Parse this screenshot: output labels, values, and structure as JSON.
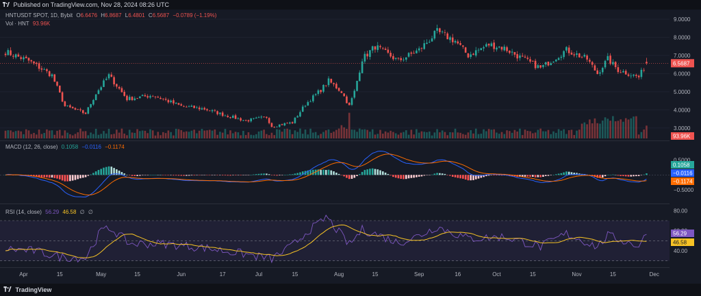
{
  "header": {
    "published": "Published on TradingView.com, Nov 28, 2024 08:26 UTC"
  },
  "legend": {
    "symbol": "HNTUSDT SPOT, 1D, Bybit",
    "o_label": "O",
    "o": "6.6476",
    "h_label": "H",
    "h": "6.8687",
    "l_label": "L",
    "l": "6.4801",
    "c_label": "C",
    "c": "6.5687",
    "change": "−0.0789 (−1.19%)",
    "vol_label": "Vol · HNT",
    "vol_value": "93.96K"
  },
  "macd_legend": {
    "name": "MACD (12, 26, close)",
    "v1": "0.1058",
    "v2": "−0.0116",
    "v3": "−0.1174"
  },
  "rsi_legend": {
    "name": "RSI (14, close)",
    "v1": "56.29",
    "v2": "46.58",
    "v3": "∅",
    "v4": "∅"
  },
  "footer": {
    "brand": "TradingView"
  },
  "colors": {
    "up": "#26a69a",
    "down": "#ef5350",
    "macd": "#2962ff",
    "signal": "#ff6d00",
    "rsi": "#7e57c2",
    "rsi_ma": "#f7c325"
  },
  "chart_data": [
    {
      "type": "candlestick",
      "title": "HNTUSDT SPOT, 1D, Bybit",
      "x_ticks": [
        "Apr",
        "15",
        "May",
        "15",
        "Jun",
        "17",
        "Jul",
        "15",
        "Aug",
        "15",
        "Sep",
        "16",
        "Oct",
        "15",
        "Nov",
        "15",
        "Dec"
      ],
      "y_ticks": [
        "3.0000",
        "4.0000",
        "5.0000",
        "6.0000",
        "7.0000",
        "8.0000",
        "9.0000"
      ],
      "ylim": [
        2.5,
        9.3
      ],
      "last_price": "6.5687",
      "volume_label": "93.96K",
      "close_anchors": [
        {
          "date": "2024-03-25",
          "close": 7.2
        },
        {
          "date": "2024-04-03",
          "close": 6.7
        },
        {
          "date": "2024-04-12",
          "close": 5.9
        },
        {
          "date": "2024-04-17",
          "close": 4.2
        },
        {
          "date": "2024-04-25",
          "close": 3.8
        },
        {
          "date": "2024-04-29",
          "close": 4.9
        },
        {
          "date": "2024-05-04",
          "close": 5.9
        },
        {
          "date": "2024-05-11",
          "close": 4.6
        },
        {
          "date": "2024-05-21",
          "close": 4.8
        },
        {
          "date": "2024-06-01",
          "close": 4.2
        },
        {
          "date": "2024-06-10",
          "close": 4.05
        },
        {
          "date": "2024-06-18",
          "close": 3.7
        },
        {
          "date": "2024-06-26",
          "close": 3.4
        },
        {
          "date": "2024-07-04",
          "close": 3.6
        },
        {
          "date": "2024-07-06",
          "close": 3.1
        },
        {
          "date": "2024-07-14",
          "close": 3.3
        },
        {
          "date": "2024-07-19",
          "close": 4.3
        },
        {
          "date": "2024-07-25",
          "close": 5.1
        },
        {
          "date": "2024-07-28",
          "close": 5.6
        },
        {
          "date": "2024-08-02",
          "close": 5.0
        },
        {
          "date": "2024-08-05",
          "close": 4.2
        },
        {
          "date": "2024-08-07",
          "close": 5.0
        },
        {
          "date": "2024-08-10",
          "close": 6.8
        },
        {
          "date": "2024-08-15",
          "close": 7.5
        },
        {
          "date": "2024-08-24",
          "close": 6.7
        },
        {
          "date": "2024-09-01",
          "close": 7.3
        },
        {
          "date": "2024-09-08",
          "close": 8.3
        },
        {
          "date": "2024-09-15",
          "close": 7.8
        },
        {
          "date": "2024-09-20",
          "close": 7.0
        },
        {
          "date": "2024-09-28",
          "close": 7.6
        },
        {
          "date": "2024-10-04",
          "close": 7.4
        },
        {
          "date": "2024-10-10",
          "close": 6.9
        },
        {
          "date": "2024-10-18",
          "close": 6.3
        },
        {
          "date": "2024-10-24",
          "close": 6.9
        },
        {
          "date": "2024-10-28",
          "close": 7.3
        },
        {
          "date": "2024-11-05",
          "close": 6.8
        },
        {
          "date": "2024-11-09",
          "close": 6.0
        },
        {
          "date": "2024-11-13",
          "close": 6.8
        },
        {
          "date": "2024-11-17",
          "close": 6.2
        },
        {
          "date": "2024-11-25",
          "close": 5.8
        },
        {
          "date": "2024-11-28",
          "close": 6.57
        }
      ]
    },
    {
      "type": "line",
      "title": "MACD (12, 26, close)",
      "y_ticks": [
        "0.5000",
        "−0.5000"
      ],
      "ylim": [
        -0.8,
        1.0
      ],
      "series_values": [
        "0.1058",
        "−0.0116",
        "−0.1174"
      ]
    },
    {
      "type": "line",
      "title": "RSI (14, close)",
      "y_ticks": [
        "80.00",
        "60.00",
        "40.00"
      ],
      "ylim": [
        25,
        85
      ],
      "bands": [
        70,
        50,
        30
      ],
      "series_values": [
        "56.29",
        "46.58"
      ],
      "rsi_anchors": [
        {
          "date": "2024-03-25",
          "rsi": 42
        },
        {
          "date": "2024-04-05",
          "rsi": 40
        },
        {
          "date": "2024-04-15",
          "rsi": 34
        },
        {
          "date": "2024-04-25",
          "rsi": 33
        },
        {
          "date": "2024-05-01",
          "rsi": 60
        },
        {
          "date": "2024-05-05",
          "rsi": 62
        },
        {
          "date": "2024-05-12",
          "rsi": 47
        },
        {
          "date": "2024-05-25",
          "rsi": 47
        },
        {
          "date": "2024-06-10",
          "rsi": 43
        },
        {
          "date": "2024-06-25",
          "rsi": 37
        },
        {
          "date": "2024-07-06",
          "rsi": 32
        },
        {
          "date": "2024-07-14",
          "rsi": 45
        },
        {
          "date": "2024-07-20",
          "rsi": 60
        },
        {
          "date": "2024-07-25",
          "rsi": 68
        },
        {
          "date": "2024-07-27",
          "rsi": 74
        },
        {
          "date": "2024-08-05",
          "rsi": 46
        },
        {
          "date": "2024-08-10",
          "rsi": 61
        },
        {
          "date": "2024-08-15",
          "rsi": 57
        },
        {
          "date": "2024-08-24",
          "rsi": 48
        },
        {
          "date": "2024-09-01",
          "rsi": 55
        },
        {
          "date": "2024-09-08",
          "rsi": 64
        },
        {
          "date": "2024-09-20",
          "rsi": 52
        },
        {
          "date": "2024-10-04",
          "rsi": 54
        },
        {
          "date": "2024-10-18",
          "rsi": 44
        },
        {
          "date": "2024-10-28",
          "rsi": 57
        },
        {
          "date": "2024-11-09",
          "rsi": 44
        },
        {
          "date": "2024-11-13",
          "rsi": 55
        },
        {
          "date": "2024-11-25",
          "rsi": 45
        },
        {
          "date": "2024-11-28",
          "rsi": 56.29
        }
      ]
    }
  ]
}
